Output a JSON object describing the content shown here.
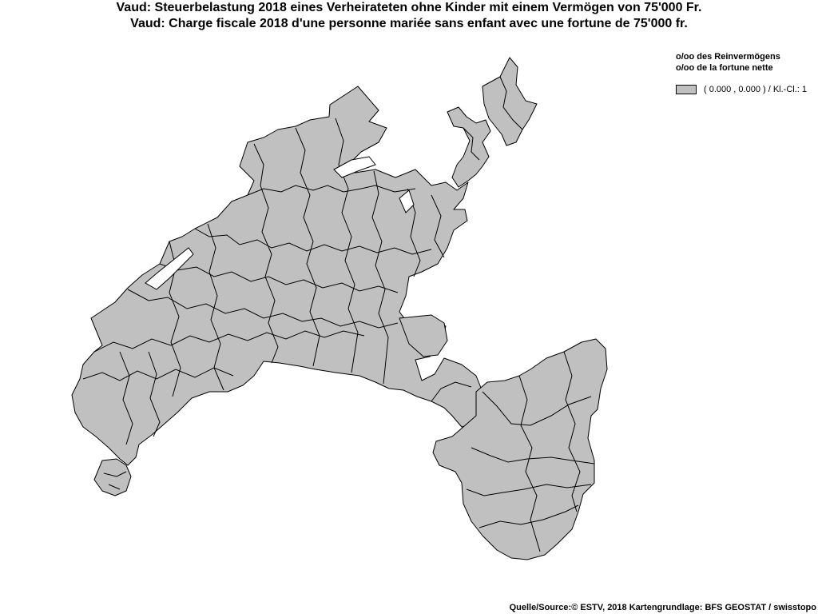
{
  "title": {
    "line_de": "Vaud: Steuerbelastung 2018 eines Verheirateten ohne Kinder mit einem Vermögen von 75'000 Fr.",
    "line_fr": "Vaud: Charge fiscale 2018 d'une personne mariée sans enfant avec une fortune de 75'000 fr."
  },
  "legend": {
    "heading_de": "o/oo des Reinvermögens",
    "heading_fr": "o/oo de la fortune nette",
    "classes": [
      {
        "label": "( 0.000 , 0.000 ) / Kl.-Cl.: 1",
        "color": "#c0c0c0"
      }
    ]
  },
  "map": {
    "fill_color": "#c0c0c0",
    "border_color": "#000000",
    "background": "#ffffff"
  },
  "footer": {
    "source": "Quelle/Source:© ESTV, 2018 Kartengrundlage: BFS GEOSTAT / swisstopo"
  }
}
